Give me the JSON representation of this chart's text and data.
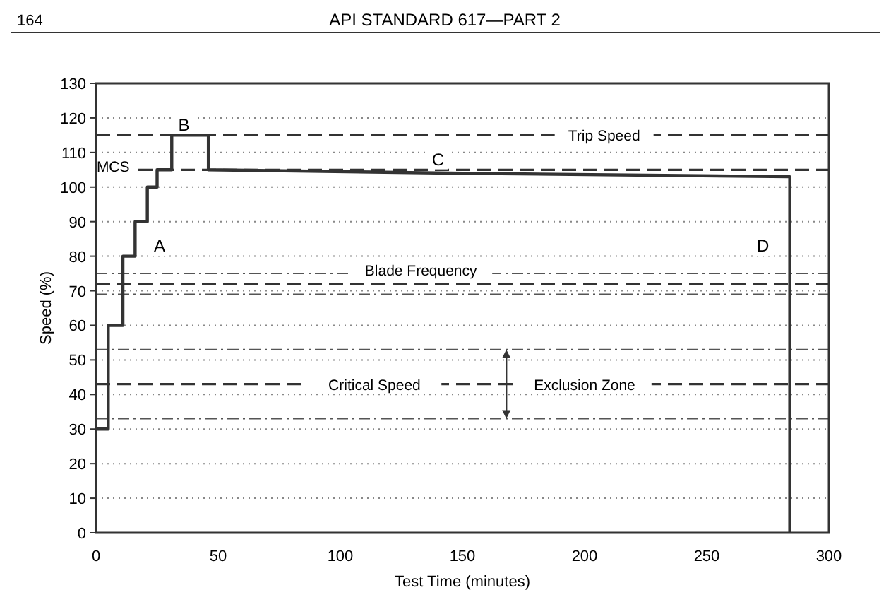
{
  "chart_data": {
    "type": "line",
    "title": "API STANDARD 617—PART 2",
    "xlabel": "Test Time (minutes)",
    "ylabel": "Speed (%)",
    "x": [
      0,
      5,
      5,
      11,
      11,
      16,
      16,
      21,
      21,
      25,
      25,
      31,
      31,
      46,
      46,
      150,
      284,
      284
    ],
    "series": [
      {
        "color": "#333333",
        "values": [
          30,
          30,
          60,
          60,
          80,
          80,
          90,
          90,
          100,
          100,
          105,
          105,
          115,
          115,
          105,
          104,
          103,
          0
        ]
      }
    ],
    "xlim": [
      0,
      300
    ],
    "xticks": [
      0,
      50,
      100,
      150,
      200,
      250,
      300
    ],
    "ylim": [
      0,
      130
    ],
    "yticks": [
      0,
      10,
      20,
      30,
      40,
      50,
      60,
      70,
      80,
      90,
      100,
      110,
      120,
      130
    ],
    "grid": "y",
    "marker": "none",
    "line_style": "solid",
    "ref_lines": [
      {
        "axis": "y",
        "value": 115,
        "line_style": "dashed",
        "color": "#333333"
      },
      {
        "axis": "y",
        "value": 105,
        "line_style": "dashed",
        "color": "#333333"
      },
      {
        "axis": "y",
        "value": 75,
        "line_style": "dashdot",
        "color": "#555555"
      },
      {
        "axis": "y",
        "value": 72,
        "line_style": "dashed",
        "color": "#333333"
      },
      {
        "axis": "y",
        "value": 69,
        "line_style": "dashdot",
        "color": "#555555"
      },
      {
        "axis": "y",
        "value": 53,
        "line_style": "dashdot",
        "color": "#555555"
      },
      {
        "axis": "y",
        "value": 43,
        "line_style": "dashed",
        "color": "#333333"
      },
      {
        "axis": "y",
        "value": 33,
        "line_style": "dashdot",
        "color": "#555555"
      }
    ],
    "annotations": [
      "164",
      {
        "text": "Trip Speed",
        "x": 208,
        "y": 115
      },
      {
        "text": "MCS",
        "x": 7,
        "y": 106
      },
      {
        "text": "Blade Frequency",
        "x": 133,
        "y": 76
      },
      {
        "text": "Critical Speed",
        "x": 114,
        "y": 43
      },
      {
        "text": "Exclusion Zone",
        "x": 200,
        "y": 43
      },
      {
        "text": "A",
        "x": 26,
        "y": 83
      },
      {
        "text": "B",
        "x": 36,
        "y": 118
      },
      {
        "text": "C",
        "x": 140,
        "y": 108
      },
      {
        "text": "D",
        "x": 273,
        "y": 83
      }
    ]
  }
}
